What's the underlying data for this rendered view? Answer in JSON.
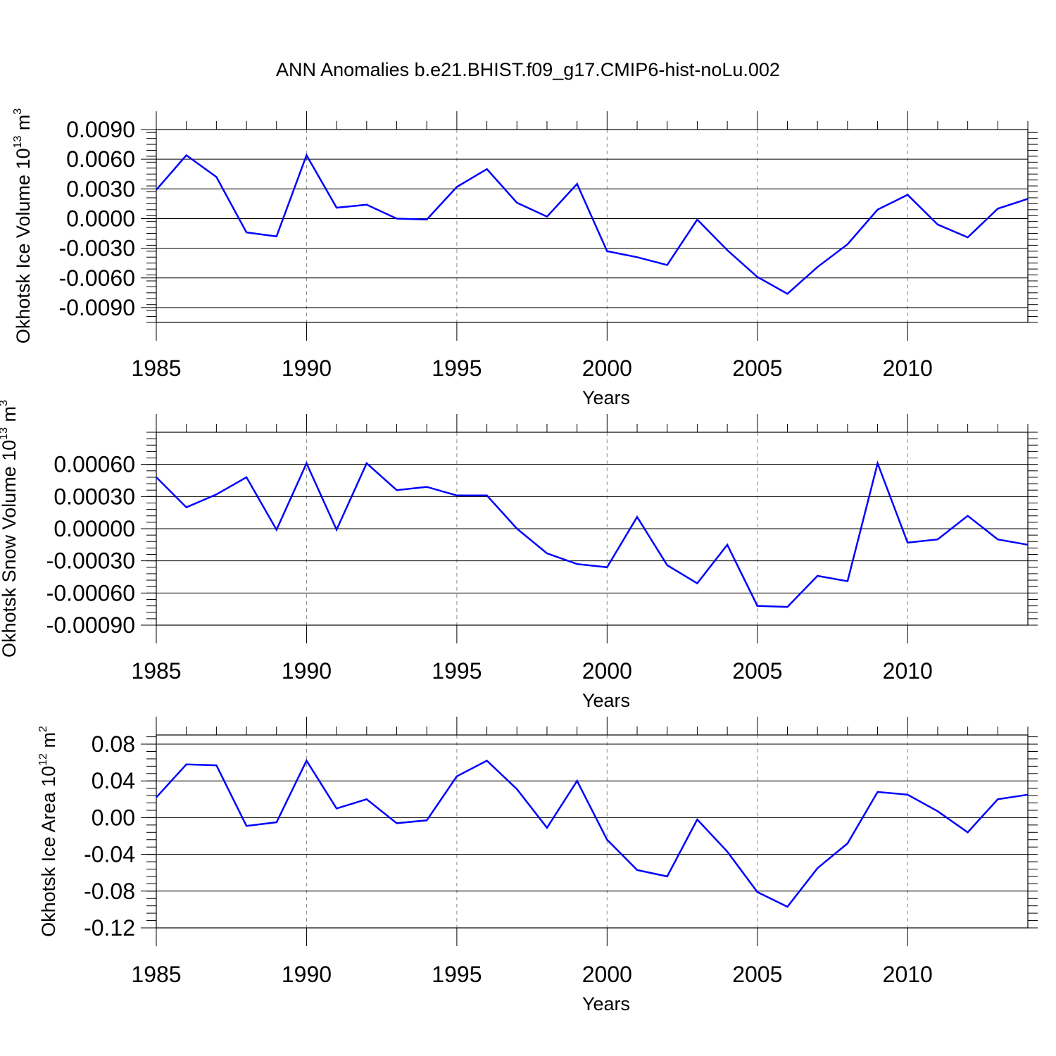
{
  "title": "ANN Anomalies b.e21.BHIST.f09_g17.CMIP6-hist-noLu.002",
  "line_color": "#0000ff",
  "chart_data": [
    {
      "type": "line",
      "xlabel": "Years",
      "ylabel": "Okhotsk Ice Volume 10",
      "ylabel_exp": "13",
      "ylabel_unit": " m",
      "ylabel_unit_exp": "3",
      "xlim": [
        1985,
        2014
      ],
      "ylim": [
        -0.0105,
        0.009
      ],
      "x_ticks": [
        "1985",
        "1990",
        "1995",
        "2000",
        "2005",
        "2010"
      ],
      "y_ticks": [
        "0.0090",
        "0.0060",
        "0.0030",
        "0.0000",
        "-0.0030",
        "-0.0060",
        "-0.0090"
      ],
      "series": [
        {
          "name": "Okhotsk Ice Volume",
          "x": [
            1985,
            1986,
            1987,
            1988,
            1989,
            1990,
            1991,
            1992,
            1993,
            1994,
            1995,
            1996,
            1997,
            1998,
            1999,
            2000,
            2001,
            2002,
            2003,
            2004,
            2005,
            2006,
            2007,
            2008,
            2009,
            2010,
            2011,
            2012,
            2013,
            2014
          ],
          "y": [
            0.0029,
            0.0064,
            0.0042,
            -0.0014,
            -0.0018,
            0.0064,
            0.0011,
            0.0014,
            0.0,
            -0.0001,
            0.0032,
            0.005,
            0.0016,
            0.0002,
            0.0035,
            -0.0033,
            -0.0039,
            -0.0047,
            -0.0001,
            -0.0032,
            -0.0059,
            -0.0076,
            -0.0049,
            -0.0026,
            0.0009,
            0.0024,
            -0.0006,
            -0.0019,
            0.001,
            0.002
          ]
        }
      ]
    },
    {
      "type": "line",
      "xlabel": "Years",
      "ylabel": "Okhotsk Snow Volume 10",
      "ylabel_exp": "13",
      "ylabel_unit": " m",
      "ylabel_unit_exp": "3",
      "xlim": [
        1985,
        2014
      ],
      "ylim": [
        -0.0009,
        0.0009
      ],
      "x_ticks": [
        "1985",
        "1990",
        "1995",
        "2000",
        "2005",
        "2010"
      ],
      "y_ticks": [
        "0.00060",
        "0.00030",
        "0.00000",
        "-0.00030",
        "-0.00060",
        "-0.00090"
      ],
      "series": [
        {
          "name": "Okhotsk Snow Volume",
          "x": [
            1985,
            1986,
            1987,
            1988,
            1989,
            1990,
            1991,
            1992,
            1993,
            1994,
            1995,
            1996,
            1997,
            1998,
            1999,
            2000,
            2001,
            2002,
            2003,
            2004,
            2005,
            2006,
            2007,
            2008,
            2009,
            2010,
            2011,
            2012,
            2013,
            2014
          ],
          "y": [
            0.00048,
            0.0002,
            0.00032,
            0.00048,
            -1e-05,
            0.00061,
            -1e-05,
            0.00061,
            0.00036,
            0.00039,
            0.00031,
            0.00031,
            0.0,
            -0.00023,
            -0.00033,
            -0.00036,
            0.00011,
            -0.00034,
            -0.00051,
            -0.00015,
            -0.00072,
            -0.00073,
            -0.00044,
            -0.00049,
            0.00061,
            -0.00013,
            -0.0001,
            0.00012,
            -0.0001,
            -0.00015
          ]
        }
      ]
    },
    {
      "type": "line",
      "xlabel": "Years",
      "ylabel": "Okhotsk Ice Area 10",
      "ylabel_exp": "12",
      "ylabel_unit": " m",
      "ylabel_unit_exp": "2",
      "xlim": [
        1985,
        2014
      ],
      "ylim": [
        -0.12,
        0.09
      ],
      "x_ticks": [
        "1985",
        "1990",
        "1995",
        "2000",
        "2005",
        "2010"
      ],
      "y_ticks": [
        "0.08",
        "0.04",
        "0.00",
        "-0.04",
        "-0.08",
        "-0.12"
      ],
      "series": [
        {
          "name": "Okhotsk Ice Area",
          "x": [
            1985,
            1986,
            1987,
            1988,
            1989,
            1990,
            1991,
            1992,
            1993,
            1994,
            1995,
            1996,
            1997,
            1998,
            1999,
            2000,
            2001,
            2002,
            2003,
            2004,
            2005,
            2006,
            2007,
            2008,
            2009,
            2010,
            2011,
            2012,
            2013,
            2014
          ],
          "y": [
            0.022,
            0.058,
            0.057,
            -0.009,
            -0.005,
            0.062,
            0.01,
            0.02,
            -0.006,
            -0.003,
            0.045,
            0.062,
            0.031,
            -0.011,
            0.04,
            -0.024,
            -0.057,
            -0.064,
            -0.002,
            -0.037,
            -0.081,
            -0.097,
            -0.055,
            -0.028,
            0.028,
            0.025,
            0.007,
            -0.016,
            0.02,
            0.025
          ]
        }
      ]
    }
  ]
}
